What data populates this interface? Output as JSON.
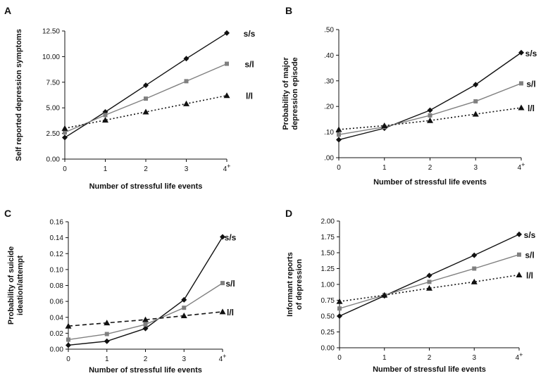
{
  "chart_data": [
    {
      "type": "line",
      "panel": "A",
      "ylabel": "Self reported depression symptoms",
      "xlabel": "Number of stressful life events",
      "categories": [
        "0",
        "1",
        "2",
        "3",
        "4+"
      ],
      "yticks": [
        "0.00",
        "2.50",
        "5.00",
        "7.50",
        "10.00",
        "12.50"
      ],
      "ylim": [
        0,
        12.5
      ],
      "series": [
        {
          "name": "s/s",
          "values": [
            2.1,
            4.6,
            7.2,
            9.8,
            12.3
          ],
          "color": "#111111",
          "marker": "diamond",
          "dash": "solid"
        },
        {
          "name": "s/l",
          "values": [
            2.6,
            4.3,
            5.9,
            7.6,
            9.3
          ],
          "color": "#808080",
          "marker": "square",
          "dash": "solid"
        },
        {
          "name": "l/l",
          "values": [
            3.0,
            3.8,
            4.6,
            5.4,
            6.2
          ],
          "color": "#111111",
          "marker": "triangle",
          "dash": "dotted"
        }
      ]
    },
    {
      "type": "line",
      "panel": "B",
      "ylabel": "Probability of major depression episode",
      "xlabel": "Number of stressful life events",
      "categories": [
        "0",
        "1",
        "2",
        "3",
        "4+"
      ],
      "yticks": [
        ".00",
        ".10",
        ".20",
        ".30",
        ".40",
        ".50"
      ],
      "ylim": [
        0,
        0.5
      ],
      "series": [
        {
          "name": "s/s",
          "values": [
            0.07,
            0.115,
            0.185,
            0.285,
            0.41
          ],
          "color": "#111111",
          "marker": "diamond",
          "dash": "solid"
        },
        {
          "name": "s/l",
          "values": [
            0.09,
            0.12,
            0.165,
            0.22,
            0.29
          ],
          "color": "#808080",
          "marker": "square",
          "dash": "solid"
        },
        {
          "name": "l/l",
          "values": [
            0.11,
            0.125,
            0.145,
            0.17,
            0.195
          ],
          "color": "#111111",
          "marker": "triangle",
          "dash": "dotted"
        }
      ]
    },
    {
      "type": "line",
      "panel": "C",
      "ylabel": "Probability of suicide ideation/attempt",
      "xlabel": "Number of stressful life events",
      "categories": [
        "0",
        "1",
        "2",
        "3",
        "4+"
      ],
      "yticks": [
        "0.00",
        "0.02",
        "0.04",
        "0.06",
        "0.08",
        "0.10",
        "0.12",
        "0.14",
        "0.16"
      ],
      "ylim": [
        0,
        0.16
      ],
      "series": [
        {
          "name": "s/s",
          "values": [
            0.005,
            0.01,
            0.026,
            0.062,
            0.141
          ],
          "color": "#111111",
          "marker": "diamond",
          "dash": "solid"
        },
        {
          "name": "s/l",
          "values": [
            0.012,
            0.019,
            0.031,
            0.052,
            0.083
          ],
          "color": "#808080",
          "marker": "square",
          "dash": "solid"
        },
        {
          "name": "l/l",
          "values": [
            0.029,
            0.033,
            0.037,
            0.042,
            0.047
          ],
          "color": "#111111",
          "marker": "triangle",
          "dash": "dashed"
        }
      ]
    },
    {
      "type": "line",
      "panel": "D",
      "ylabel": "Informant reports of depression",
      "xlabel": "Number of stressful life events",
      "categories": [
        "0",
        "1",
        "2",
        "3",
        "4+"
      ],
      "yticks": [
        "0.00",
        "0.25",
        "0.50",
        "0.75",
        "1.00",
        "1.25",
        "1.50",
        "1.75",
        "2.00"
      ],
      "ylim": [
        0,
        2.0
      ],
      "series": [
        {
          "name": "s/s",
          "values": [
            0.5,
            0.82,
            1.14,
            1.46,
            1.79
          ],
          "color": "#111111",
          "marker": "diamond",
          "dash": "solid"
        },
        {
          "name": "s/l",
          "values": [
            0.62,
            0.83,
            1.04,
            1.25,
            1.47
          ],
          "color": "#808080",
          "marker": "square",
          "dash": "solid"
        },
        {
          "name": "l/l",
          "values": [
            0.73,
            0.83,
            0.94,
            1.04,
            1.15
          ],
          "color": "#111111",
          "marker": "triangle",
          "dash": "dotted"
        }
      ]
    }
  ]
}
